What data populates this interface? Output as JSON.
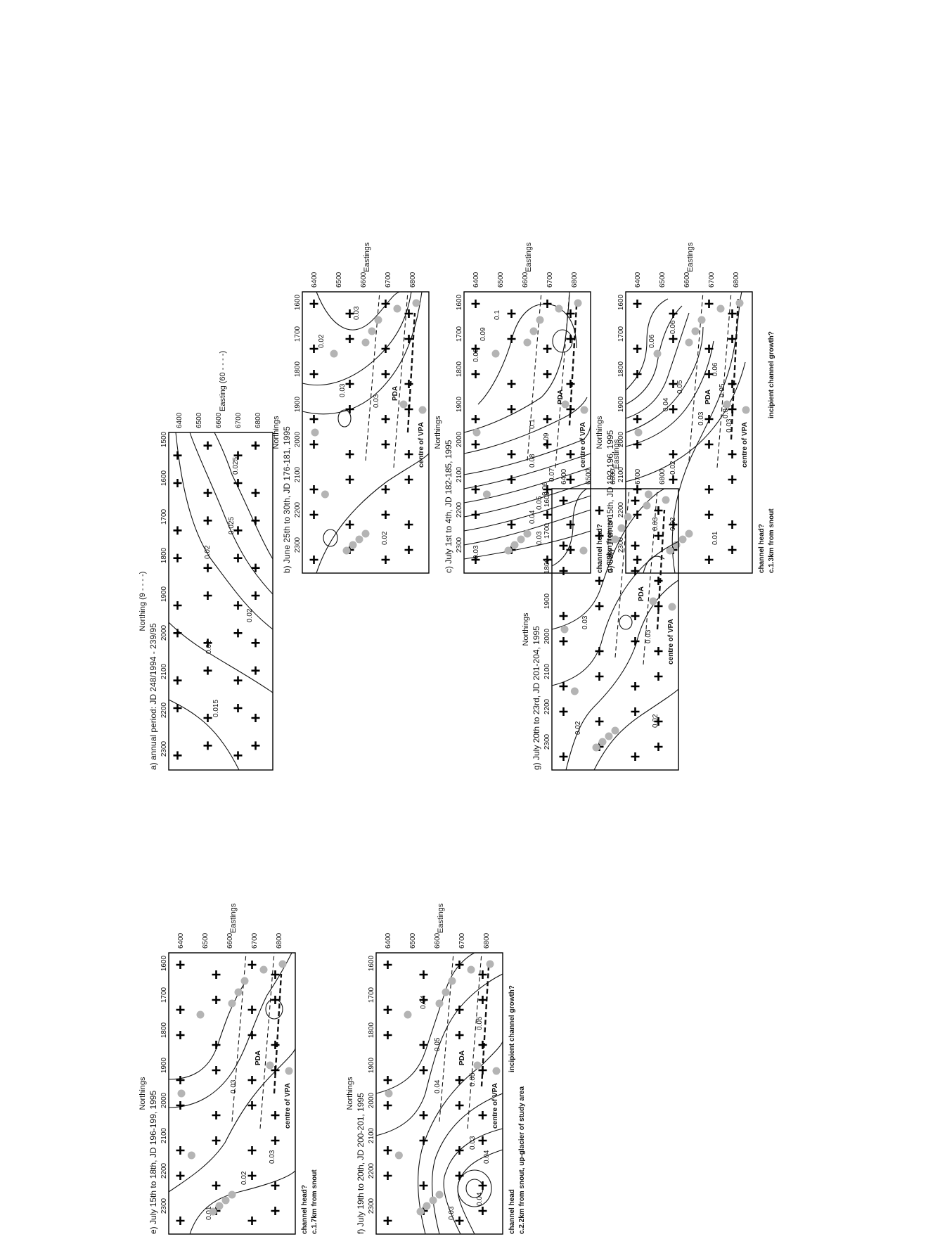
{
  "panels": [
    {
      "id": "a",
      "title": "a) annual period: JD 248/1994 - 239/95",
      "northing_label": "Northing (9 - - - -)",
      "easting_label": "Easting (60 - - - -)",
      "northing_ticks": [
        "2300",
        "2200",
        "2100",
        "2000",
        "1900",
        "1800",
        "1700",
        "1600",
        "1500"
      ],
      "easting_ticks": [
        "6400",
        "6500",
        "6600",
        "6700",
        "6800"
      ],
      "contour_labels": [
        "0.015",
        "0.02",
        "0.02",
        "0.025",
        "0.025",
        "0.02"
      ],
      "annotations": []
    },
    {
      "id": "b",
      "title": "b) June 25th to 30th, JD 176-181, 1995",
      "northing_label": "Northings",
      "easting_label": "Eastings",
      "northing_ticks": [
        "2300",
        "2200",
        "2100",
        "2000",
        "1900",
        "1800",
        "1700",
        "1600"
      ],
      "easting_ticks": [
        "6400",
        "6500",
        "6600",
        "6700",
        "6800"
      ],
      "contour_labels": [
        "0.02",
        "0.03",
        "0.03",
        "0.02",
        "0.03"
      ],
      "annotations": [
        "PDA",
        "centre of VPA"
      ]
    },
    {
      "id": "c",
      "title": "c) July 1st to 4th, JD 182-185, 1995",
      "northing_label": "Northings",
      "easting_label": "Eastings",
      "northing_ticks": [
        "2300",
        "2200",
        "2100",
        "2000",
        "1900",
        "1800",
        "1700",
        "1600"
      ],
      "easting_ticks": [
        "6400",
        "6500",
        "6600",
        "6700",
        "6800"
      ],
      "contour_labels": [
        "0.03",
        "0.03",
        "0.04",
        "0.05",
        "0.06",
        "0.07",
        "0.08",
        "0.09",
        "0.1",
        "0.08",
        "0.09",
        "0.1"
      ],
      "annotations": [
        "PDA",
        "centre of VPA",
        "channel head?",
        "c. 0.9km from sn"
      ]
    },
    {
      "id": "d",
      "title": "d) July 11th to 15th, JD 192-196, 1995",
      "northing_label": "Northings",
      "easting_label": "Eastings",
      "northing_ticks": [
        "2300",
        "2200",
        "2100",
        "2000",
        "1900",
        "1800",
        "1700",
        "1600"
      ],
      "easting_ticks": [
        "6400",
        "6500",
        "6600",
        "6700",
        "6800"
      ],
      "contour_labels": [
        "0.01",
        "0.02",
        "0.02",
        "0.03",
        "0.03",
        "0.04",
        "0.04",
        "0.05",
        "0.05",
        "0.06",
        "0.06",
        "0.06"
      ],
      "annotations": [
        "PDA",
        "centre of VPA",
        "channel head?",
        "c.1.3km from snout",
        "incipient channel growth?"
      ]
    },
    {
      "id": "e",
      "title": "e) July 15th to 18th, JD 196-199, 1995",
      "northing_label": "Northings",
      "easting_label": "Eastings",
      "northing_ticks": [
        "2300",
        "2200",
        "2100",
        "2000",
        "1900",
        "1800",
        "1700",
        "1600"
      ],
      "easting_ticks": [
        "6400",
        "6500",
        "6600",
        "6700",
        "6800"
      ],
      "contour_labels": [
        "0.01",
        "0.02",
        "0.03",
        "0.03"
      ],
      "annotations": [
        "PDA",
        "centre of VPA",
        "channel head?",
        "c.1.7km from snout"
      ]
    },
    {
      "id": "f",
      "title": "f) July 19th to 20th, JD 200-201, 1995",
      "northing_label": "Northings",
      "easting_label": "Eastings",
      "northing_ticks": [
        "2300",
        "2200",
        "2100",
        "2000",
        "1900",
        "1800",
        "1700",
        "1600"
      ],
      "easting_ticks": [
        "6400",
        "6500",
        "6600",
        "6700",
        "6800"
      ],
      "contour_labels": [
        "0.03",
        "0.04",
        "0.04",
        "0.03",
        "0.04",
        "0.05",
        "0.05",
        "0.05",
        "0.04"
      ],
      "annotations": [
        "PDA",
        "centre of VPA",
        "incipient channel growth?",
        "channel head",
        "c.2.2km from snout, up-glacier of study area"
      ]
    },
    {
      "id": "g",
      "title": "g) July 20th to 23rd, JD 201-204, 1995",
      "northing_label": "Northings",
      "easting_label": "Eastings",
      "northing_ticks": [
        "2300",
        "2200",
        "2100",
        "2000",
        "1900",
        "1800",
        "1700",
        "1600"
      ],
      "easting_ticks": [
        "6400",
        "6500",
        "6600",
        "6700",
        "6800"
      ],
      "contour_labels": [
        "0.02",
        "0.02",
        "0.03",
        "0.03",
        "0.03"
      ],
      "annotations": [
        "PDA",
        "centre of VPA"
      ]
    }
  ]
}
